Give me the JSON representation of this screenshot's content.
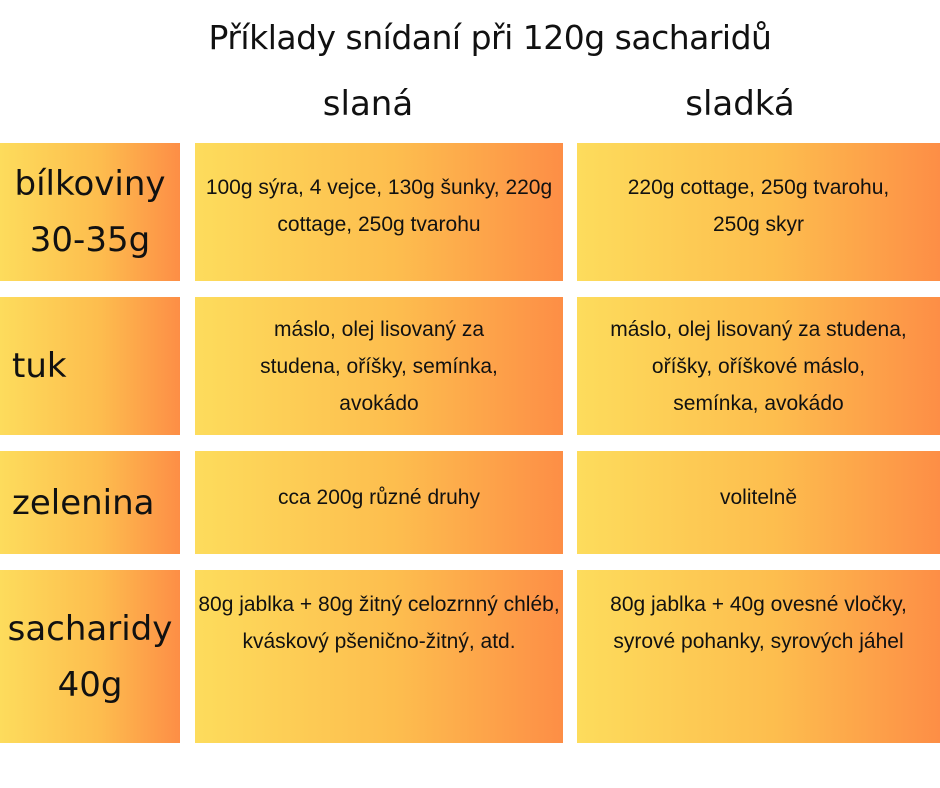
{
  "title": "Příklady snídaní při 120g sacharidů",
  "columns": {
    "savory": "slaná",
    "sweet": "sladká"
  },
  "rows": [
    {
      "label_line1": "bílkoviny",
      "label_line2": "30-35g",
      "savory": "100g sýra, 4 vejce, 130g šunky, 220g cottage, 250g tvarohu",
      "sweet": "220g cottage, 250g tvarohu, 250g skyr"
    },
    {
      "label_line1": "tuk",
      "label_line2": "",
      "savory": "máslo, olej lisovaný za studena, oříšky, semínka, avokádo",
      "sweet": "máslo, olej lisovaný za studena, oříšky, oříškové máslo, semínka, avokádo"
    },
    {
      "label_line1": "zelenina",
      "label_line2": "",
      "savory": "cca 200g různé druhy",
      "sweet": "volitelně"
    },
    {
      "label_line1": "sacharidy",
      "label_line2": "40g",
      "savory": "80g jablka + 80g žitný celozrnný chléb, kváskový pšeničnо-žitný, atd.",
      "sweet": "80g jablka + 40g ovesné vločky, syrové pohanky, syrových jáhel"
    }
  ]
}
